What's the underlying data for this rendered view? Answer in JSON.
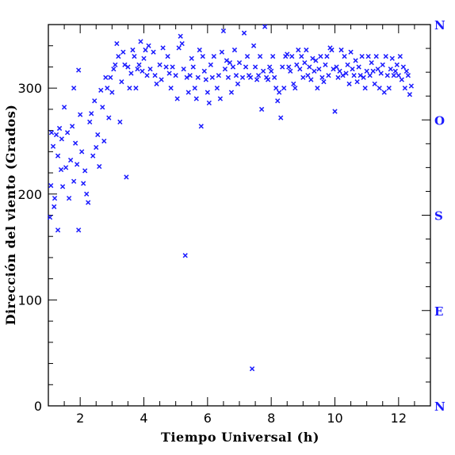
{
  "colors": {
    "points": "#1a1aff",
    "axes": "#000000",
    "cardinal": "#1a1aff"
  },
  "chart_data": {
    "type": "scatter",
    "xlabel": "Tiempo Universal (h)",
    "ylabel": "Dirección del viento (Grados)",
    "xlim": [
      1,
      13
    ],
    "ylim": [
      0,
      360
    ],
    "grid": false,
    "marker": "x",
    "x_ticks": [
      2,
      4,
      6,
      8,
      10,
      12
    ],
    "x_tick_labels": [
      "2",
      "4",
      "6",
      "8",
      "10",
      "12"
    ],
    "y_ticks": [
      0,
      100,
      200,
      300
    ],
    "y_tick_labels": [
      "0",
      "100",
      "200",
      "300"
    ],
    "right_axis": {
      "ticks": [
        0,
        90,
        180,
        270,
        360
      ],
      "labels": [
        "N",
        "E",
        "S",
        "O",
        "N"
      ]
    },
    "points": [
      [
        1.05,
        178
      ],
      [
        1.08,
        208
      ],
      [
        1.1,
        258
      ],
      [
        1.15,
        245
      ],
      [
        1.18,
        188
      ],
      [
        1.2,
        196
      ],
      [
        1.25,
        256
      ],
      [
        1.3,
        236
      ],
      [
        1.3,
        166
      ],
      [
        1.35,
        262
      ],
      [
        1.4,
        223
      ],
      [
        1.42,
        252
      ],
      [
        1.45,
        207
      ],
      [
        1.5,
        282
      ],
      [
        1.55,
        225
      ],
      [
        1.6,
        258
      ],
      [
        1.65,
        196
      ],
      [
        1.7,
        232
      ],
      [
        1.75,
        264
      ],
      [
        1.8,
        300
      ],
      [
        1.8,
        212
      ],
      [
        1.85,
        248
      ],
      [
        1.9,
        228
      ],
      [
        1.95,
        166
      ],
      [
        1.95,
        317
      ],
      [
        2.0,
        275
      ],
      [
        2.05,
        240
      ],
      [
        2.1,
        210
      ],
      [
        2.15,
        222
      ],
      [
        2.2,
        200
      ],
      [
        2.25,
        192
      ],
      [
        2.3,
        268
      ],
      [
        2.35,
        276
      ],
      [
        2.4,
        236
      ],
      [
        2.45,
        288
      ],
      [
        2.5,
        244
      ],
      [
        2.55,
        256
      ],
      [
        2.6,
        226
      ],
      [
        2.65,
        298
      ],
      [
        2.7,
        282
      ],
      [
        2.75,
        250
      ],
      [
        2.8,
        310
      ],
      [
        2.85,
        300
      ],
      [
        2.9,
        272
      ],
      [
        2.95,
        310
      ],
      [
        3.0,
        296
      ],
      [
        3.05,
        318
      ],
      [
        3.1,
        322
      ],
      [
        3.15,
        342
      ],
      [
        3.2,
        330
      ],
      [
        3.25,
        268
      ],
      [
        3.3,
        306
      ],
      [
        3.35,
        334
      ],
      [
        3.4,
        322
      ],
      [
        3.45,
        216
      ],
      [
        3.5,
        320
      ],
      [
        3.55,
        300
      ],
      [
        3.6,
        314
      ],
      [
        3.65,
        336
      ],
      [
        3.7,
        330
      ],
      [
        3.75,
        300
      ],
      [
        3.8,
        318
      ],
      [
        3.85,
        322
      ],
      [
        3.9,
        344
      ],
      [
        3.95,
        316
      ],
      [
        4.0,
        328
      ],
      [
        4.05,
        336
      ],
      [
        4.1,
        312
      ],
      [
        4.15,
        340
      ],
      [
        4.2,
        318
      ],
      [
        4.3,
        334
      ],
      [
        4.35,
        312
      ],
      [
        4.4,
        304
      ],
      [
        4.5,
        322
      ],
      [
        4.55,
        308
      ],
      [
        4.6,
        338
      ],
      [
        4.7,
        320
      ],
      [
        4.75,
        330
      ],
      [
        4.8,
        314
      ],
      [
        4.85,
        300
      ],
      [
        4.9,
        320
      ],
      [
        5.0,
        312
      ],
      [
        5.05,
        290
      ],
      [
        5.1,
        338
      ],
      [
        5.15,
        349
      ],
      [
        5.2,
        342
      ],
      [
        5.25,
        318
      ],
      [
        5.3,
        142
      ],
      [
        5.35,
        310
      ],
      [
        5.4,
        296
      ],
      [
        5.45,
        312
      ],
      [
        5.5,
        328
      ],
      [
        5.55,
        320
      ],
      [
        5.6,
        300
      ],
      [
        5.65,
        290
      ],
      [
        5.7,
        310
      ],
      [
        5.75,
        336
      ],
      [
        5.8,
        264
      ],
      [
        5.85,
        330
      ],
      [
        5.9,
        316
      ],
      [
        5.95,
        308
      ],
      [
        6.0,
        296
      ],
      [
        6.05,
        286
      ],
      [
        6.1,
        322
      ],
      [
        6.15,
        310
      ],
      [
        6.2,
        330
      ],
      [
        6.3,
        300
      ],
      [
        6.35,
        312
      ],
      [
        6.4,
        290
      ],
      [
        6.45,
        334
      ],
      [
        6.5,
        354
      ],
      [
        6.55,
        318
      ],
      [
        6.6,
        326
      ],
      [
        6.65,
        310
      ],
      [
        6.7,
        324
      ],
      [
        6.75,
        296
      ],
      [
        6.8,
        320
      ],
      [
        6.85,
        336
      ],
      [
        6.9,
        312
      ],
      [
        6.95,
        304
      ],
      [
        7.0,
        324
      ],
      [
        7.1,
        310
      ],
      [
        7.15,
        352
      ],
      [
        7.2,
        320
      ],
      [
        7.25,
        330
      ],
      [
        7.3,
        312
      ],
      [
        7.35,
        310
      ],
      [
        7.4,
        35
      ],
      [
        7.45,
        340
      ],
      [
        7.5,
        320
      ],
      [
        7.55,
        308
      ],
      [
        7.6,
        312
      ],
      [
        7.65,
        330
      ],
      [
        7.7,
        280
      ],
      [
        7.75,
        316
      ],
      [
        7.8,
        358
      ],
      [
        7.85,
        310
      ],
      [
        7.9,
        308
      ],
      [
        7.95,
        320
      ],
      [
        8.0,
        316
      ],
      [
        8.05,
        330
      ],
      [
        8.1,
        310
      ],
      [
        8.15,
        300
      ],
      [
        8.2,
        288
      ],
      [
        8.25,
        296
      ],
      [
        8.3,
        272
      ],
      [
        8.35,
        320
      ],
      [
        8.4,
        300
      ],
      [
        8.45,
        330
      ],
      [
        8.5,
        332
      ],
      [
        8.55,
        320
      ],
      [
        8.6,
        316
      ],
      [
        8.65,
        330
      ],
      [
        8.7,
        304
      ],
      [
        8.75,
        300
      ],
      [
        8.8,
        322
      ],
      [
        8.85,
        336
      ],
      [
        8.9,
        318
      ],
      [
        8.95,
        330
      ],
      [
        9.0,
        310
      ],
      [
        9.05,
        324
      ],
      [
        9.1,
        336
      ],
      [
        9.15,
        312
      ],
      [
        9.2,
        320
      ],
      [
        9.25,
        308
      ],
      [
        9.3,
        328
      ],
      [
        9.35,
        316
      ],
      [
        9.4,
        326
      ],
      [
        9.45,
        300
      ],
      [
        9.5,
        318
      ],
      [
        9.55,
        330
      ],
      [
        9.6,
        310
      ],
      [
        9.65,
        306
      ],
      [
        9.7,
        322
      ],
      [
        9.75,
        330
      ],
      [
        9.8,
        312
      ],
      [
        9.85,
        338
      ],
      [
        9.9,
        336
      ],
      [
        9.95,
        318
      ],
      [
        10.0,
        278
      ],
      [
        10.05,
        320
      ],
      [
        10.1,
        310
      ],
      [
        10.15,
        316
      ],
      [
        10.2,
        336
      ],
      [
        10.25,
        312
      ],
      [
        10.3,
        330
      ],
      [
        10.35,
        314
      ],
      [
        10.4,
        322
      ],
      [
        10.45,
        304
      ],
      [
        10.5,
        334
      ],
      [
        10.55,
        318
      ],
      [
        10.6,
        312
      ],
      [
        10.65,
        326
      ],
      [
        10.7,
        306
      ],
      [
        10.75,
        320
      ],
      [
        10.8,
        312
      ],
      [
        10.85,
        330
      ],
      [
        10.9,
        310
      ],
      [
        10.95,
        300
      ],
      [
        11.0,
        316
      ],
      [
        11.05,
        330
      ],
      [
        11.1,
        312
      ],
      [
        11.15,
        324
      ],
      [
        11.2,
        316
      ],
      [
        11.25,
        304
      ],
      [
        11.3,
        330
      ],
      [
        11.35,
        318
      ],
      [
        11.4,
        300
      ],
      [
        11.45,
        314
      ],
      [
        11.5,
        322
      ],
      [
        11.55,
        296
      ],
      [
        11.6,
        330
      ],
      [
        11.65,
        312
      ],
      [
        11.7,
        300
      ],
      [
        11.75,
        318
      ],
      [
        11.8,
        328
      ],
      [
        11.85,
        312
      ],
      [
        11.9,
        316
      ],
      [
        11.95,
        322
      ],
      [
        12.0,
        312
      ],
      [
        12.05,
        330
      ],
      [
        12.1,
        308
      ],
      [
        12.15,
        320
      ],
      [
        12.2,
        300
      ],
      [
        12.25,
        316
      ],
      [
        12.3,
        312
      ],
      [
        12.35,
        294
      ],
      [
        12.4,
        302
      ]
    ]
  }
}
